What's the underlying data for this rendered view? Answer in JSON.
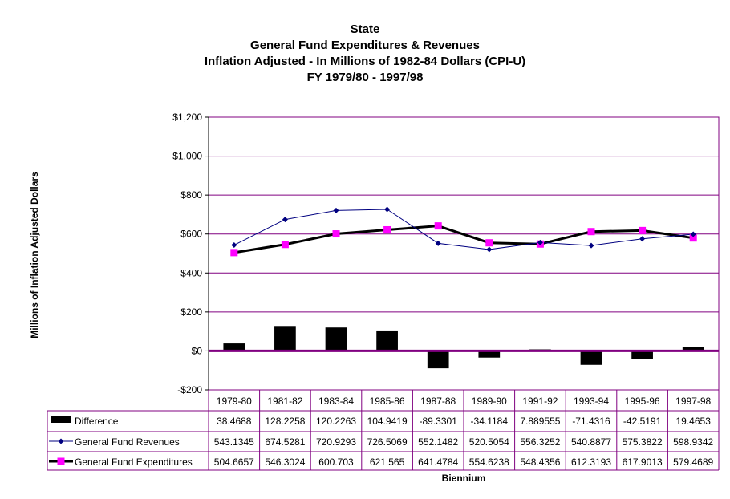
{
  "chart_data": {
    "type": "line",
    "title_lines": [
      "State",
      "General Fund Expenditures & Revenues",
      "Inflation Adjusted - In Millions of 1982-84 Dollars (CPI-U)",
      "FY 1979/80 - 1997/98"
    ],
    "ylabel": "Millions of Inflation Adjusted Dollars",
    "xlabel": "Biennium",
    "ylim": [
      -200,
      1200
    ],
    "yticks": [
      -200,
      0,
      200,
      400,
      600,
      800,
      1000,
      1200
    ],
    "ytick_labels": [
      "-$200",
      "$0",
      "$200",
      "$400",
      "$600",
      "$800",
      "$1,000",
      "$1,200"
    ],
    "grid": true,
    "categories": [
      "1979-80",
      "1981-82",
      "1983-84",
      "1985-86",
      "1987-88",
      "1989-90",
      "1991-92",
      "1993-94",
      "1995-96",
      "1997-98"
    ],
    "series": [
      {
        "name": "Difference",
        "kind": "bar",
        "color": "#000000",
        "values": [
          38.4688,
          128.2258,
          120.2263,
          104.9419,
          -89.3301,
          -34.1184,
          7.889555,
          -71.4316,
          -42.5191,
          19.4653
        ],
        "labels": [
          "38.4688",
          "128.2258",
          "120.2263",
          "104.9419",
          "-89.3301",
          "-34.1184",
          "7.889555",
          "-71.4316",
          "-42.5191",
          "19.4653"
        ]
      },
      {
        "name": "General Fund Revenues",
        "kind": "line",
        "color": "#000080",
        "marker": "diamond",
        "values": [
          543.1345,
          674.5281,
          720.9293,
          726.5069,
          552.1482,
          520.5054,
          556.3252,
          540.8877,
          575.3822,
          598.9342
        ],
        "labels": [
          "543.1345",
          "674.5281",
          "720.9293",
          "726.5069",
          "552.1482",
          "520.5054",
          "556.3252",
          "540.8877",
          "575.3822",
          "598.9342"
        ]
      },
      {
        "name": "General Fund Expenditures",
        "kind": "line",
        "color": "#000000",
        "marker": "square",
        "marker_color": "#ff00ff",
        "values": [
          504.6657,
          546.3024,
          600.703,
          621.565,
          641.4784,
          554.6238,
          548.4356,
          612.3193,
          617.9013,
          579.4689
        ],
        "labels": [
          "504.6657",
          "546.3024",
          "600.703",
          "621.565",
          "641.4784",
          "554.6238",
          "548.4356",
          "612.3193",
          "617.9013",
          "579.4689"
        ]
      }
    ],
    "colors": {
      "gridline": "#800080",
      "zero_line": "#800080",
      "plot_border": "#800080",
      "table_border": "#800080"
    }
  }
}
